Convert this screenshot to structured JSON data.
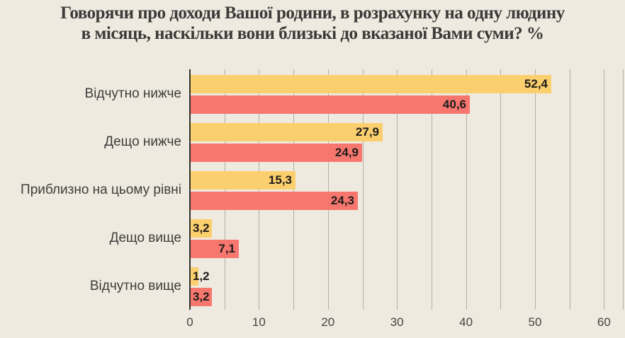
{
  "header": {
    "title_lines": [
      "Говорячи про доходи Вашої родини, в розрахунку на одну людину",
      "в місяць, наскільки вони близькі до вказаної Вами суми? %"
    ]
  },
  "colors": {
    "background": "#efeae0",
    "title": "#3b3a38",
    "grid": "#b3afa4",
    "axis": "#33322f",
    "category_label": "#3e3e3b",
    "value_label": "#1d1c1a",
    "tick_label": "#454440"
  },
  "chart_data": {
    "type": "bar",
    "orientation": "horizontal",
    "title": "Говорячи про доходи Вашої родини, в розрахунку на одну людину в місяць, наскільки вони близькі до вказаної Вами суми? %",
    "unit": "%",
    "categories": [
      "Відчутно нижче",
      "Дещо нижче",
      "Приблизно на цьому рівні",
      "Дещо вище",
      "Відчутно вище"
    ],
    "series": [
      {
        "name": "yellow",
        "color": "#fbcf6d",
        "values": [
          52.4,
          27.9,
          15.3,
          3.2,
          1.2
        ],
        "value_labels": [
          "52,4",
          "27,9",
          "15,3",
          "3,2",
          "1,2"
        ]
      },
      {
        "name": "red",
        "color": "#f7776f",
        "values": [
          40.6,
          24.9,
          24.3,
          7.1,
          3.2
        ],
        "value_labels": [
          "40,6",
          "24,9",
          "24,3",
          "7,1",
          "3,2"
        ]
      }
    ],
    "xlim": [
      0,
      62.8
    ],
    "x_tick_values": [
      0,
      10,
      20,
      30,
      40,
      50,
      60
    ],
    "x_tick_labels": [
      "0",
      "10",
      "20",
      "30",
      "40",
      "50",
      "60"
    ],
    "x_gridline_step": 5,
    "x_gridline_max": 60,
    "grid": "vertical",
    "legend": "none"
  }
}
